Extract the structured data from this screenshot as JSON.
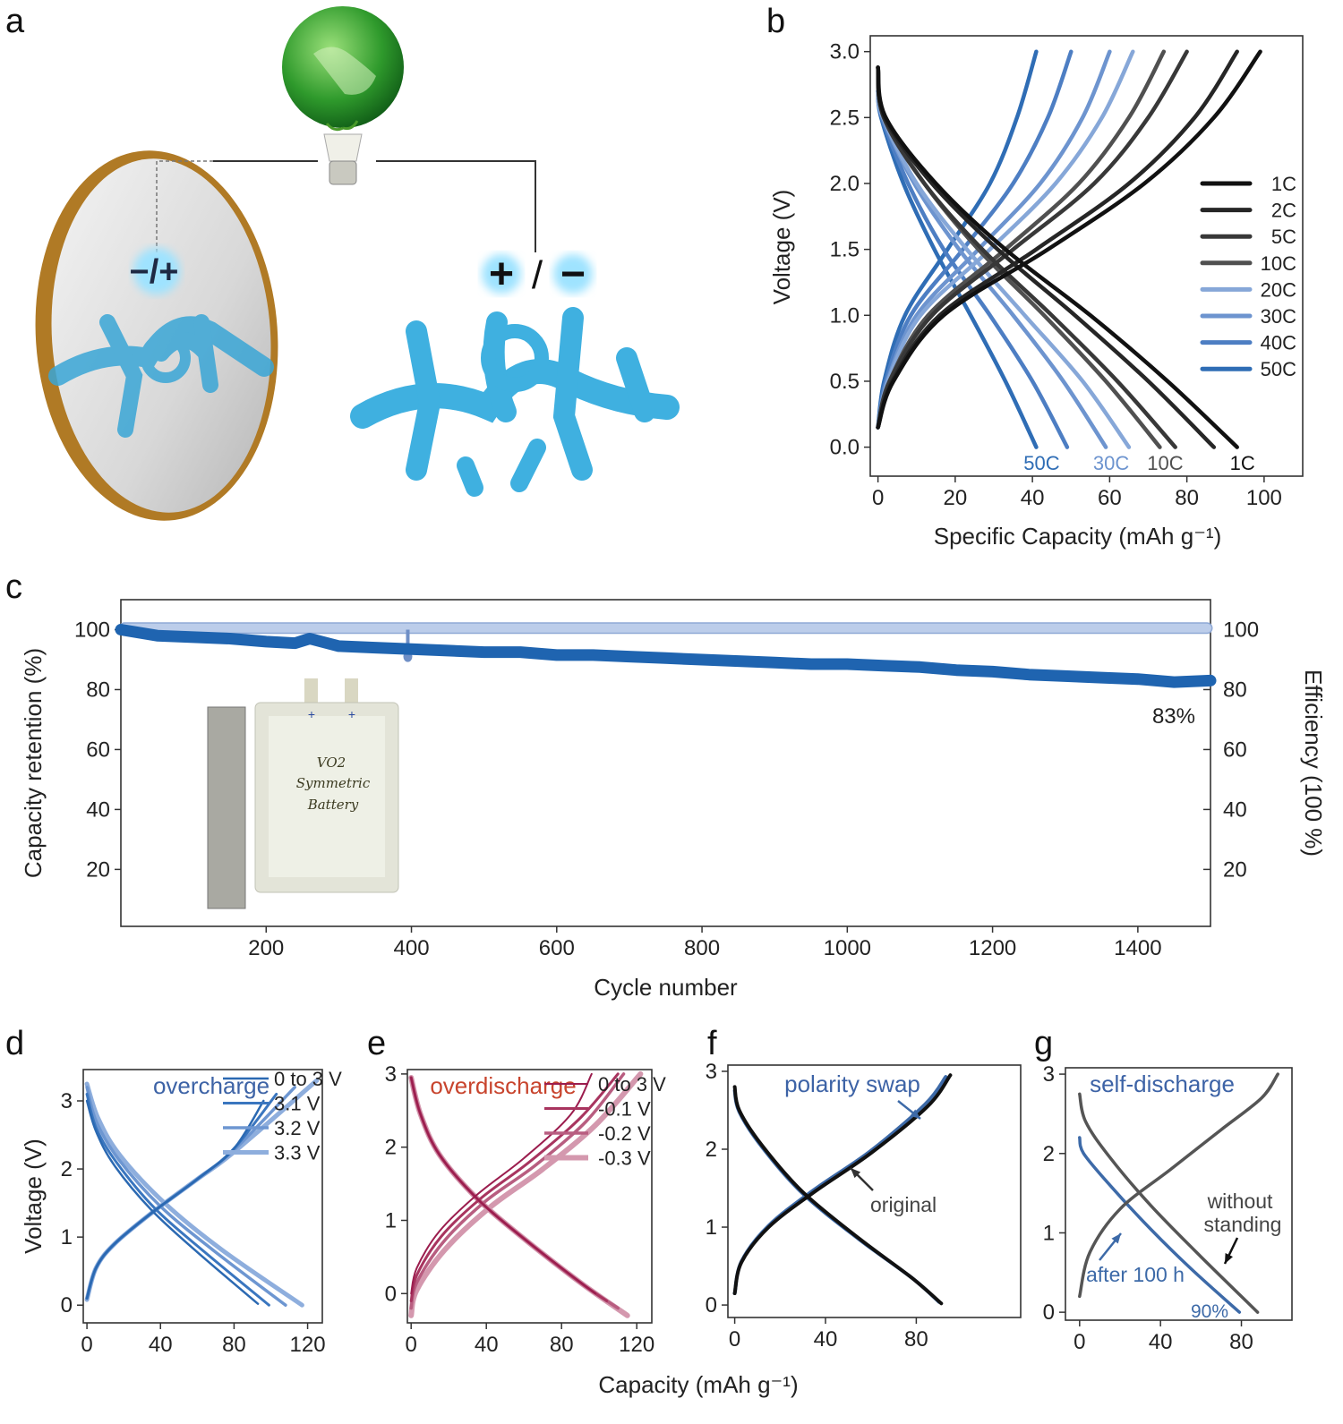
{
  "panel_letters": {
    "a": "a",
    "b": "b",
    "c": "c",
    "d": "d",
    "e": "e",
    "f": "f",
    "g": "g"
  },
  "illustration": {
    "mirror_sign": "−/+",
    "real_sign_plus": "+",
    "real_sign_slash": "/",
    "real_sign_minus": "−"
  },
  "inset_photo": {
    "line1": "VO2",
    "line2": "Symmetric",
    "line3": "Battery",
    "tab1": "+",
    "tab2": "+"
  },
  "shared_xlabel": "Capacity (mAh g⁻¹)",
  "chart_data": [
    {
      "id": "b",
      "type": "line",
      "xlabel": "Specific Capacity (mAh g⁻¹)",
      "ylabel": "Voltage (V)",
      "xlim": [
        -2,
        110
      ],
      "ylim": [
        -0.22,
        3.12
      ],
      "xticks": [
        "0",
        "20",
        "40",
        "60",
        "80",
        "100"
      ],
      "yticks": [
        "0.0",
        "0.5",
        "1.0",
        "1.5",
        "2.0",
        "2.5",
        "3.0"
      ],
      "legend": "right",
      "charge_voltage": [
        0.15,
        0.5,
        1.0,
        1.5,
        2.0,
        2.5,
        3.0
      ],
      "discharge_voltage": [
        2.85,
        2.5,
        2.0,
        1.5,
        1.0,
        0.5,
        0.0
      ],
      "series": [
        {
          "name": "1C",
          "color": "#111111",
          "charge_capacity": [
            0,
            4,
            17,
            44,
            69,
            87,
            99
          ],
          "discharge_capacity": [
            0,
            2,
            15,
            33,
            55,
            75,
            93
          ]
        },
        {
          "name": "2C",
          "color": "#262626",
          "charge_capacity": [
            0,
            3.7,
            16,
            41,
            65,
            82,
            93
          ],
          "discharge_capacity": [
            0,
            1.7,
            14,
            31,
            51,
            70,
            87
          ]
        },
        {
          "name": "5C",
          "color": "#383838",
          "charge_capacity": [
            0,
            3,
            14,
            35,
            56,
            70,
            80
          ],
          "discharge_capacity": [
            0,
            1.5,
            12,
            27,
            45,
            62,
            77
          ]
        },
        {
          "name": "10C",
          "color": "#505050",
          "charge_capacity": [
            0,
            3,
            13,
            33,
            52,
            65,
            74
          ],
          "discharge_capacity": [
            0,
            1.5,
            12,
            26,
            43,
            59,
            73
          ]
        },
        {
          "name": "20C",
          "color": "#86a7d8",
          "charge_capacity": [
            0,
            2.6,
            11,
            29,
            46,
            58,
            66
          ],
          "discharge_capacity": [
            0,
            1.3,
            10,
            23,
            38,
            53,
            65
          ]
        },
        {
          "name": "30C",
          "color": "#6d94cf",
          "charge_capacity": [
            0,
            2.4,
            10,
            26,
            42,
            53,
            60
          ],
          "discharge_capacity": [
            0,
            1.2,
            9.4,
            21,
            35,
            48,
            59
          ]
        },
        {
          "name": "40C",
          "color": "#4d7ec3",
          "charge_capacity": [
            0,
            2,
            8.5,
            22,
            35,
            44,
            50
          ],
          "discharge_capacity": [
            0,
            1,
            7.8,
            17,
            29,
            40,
            49
          ]
        },
        {
          "name": "50C",
          "color": "#2f6db5",
          "charge_capacity": [
            0,
            1.6,
            7,
            18,
            29,
            36,
            41
          ],
          "discharge_capacity": [
            0,
            0.8,
            6.6,
            14.6,
            24,
            33,
            41
          ]
        }
      ],
      "curve_labels": [
        {
          "text": "50C",
          "capacity": 41,
          "color": "#2f6db5"
        },
        {
          "text": "30C",
          "capacity": 59,
          "color": "#6d94cf"
        },
        {
          "text": "10C",
          "capacity": 73,
          "color": "#505050"
        },
        {
          "text": "1C",
          "capacity": 93,
          "color": "#111111"
        }
      ]
    },
    {
      "id": "c",
      "type": "line",
      "xlabel": "Cycle number",
      "ylabel": "Capacity retention (%)",
      "ylabel_right": "Efficiency (100 %)",
      "xlim": [
        0,
        1500
      ],
      "ylim": [
        1,
        110
      ],
      "xticks": [
        "200",
        "400",
        "600",
        "800",
        "1000",
        "1200",
        "1400"
      ],
      "yticks": [
        "20",
        "40",
        "60",
        "80",
        "100"
      ],
      "yticks_right": [
        "20",
        "40",
        "60",
        "80",
        "100"
      ],
      "retention": {
        "color": "#1f64b0",
        "x": [
          0,
          50,
          100,
          150,
          200,
          240,
          260,
          300,
          350,
          400,
          450,
          500,
          550,
          600,
          650,
          700,
          750,
          800,
          850,
          900,
          950,
          1000,
          1050,
          1100,
          1150,
          1200,
          1250,
          1300,
          1350,
          1400,
          1450,
          1500
        ],
        "y": [
          100,
          98,
          97.5,
          97,
          96,
          95.5,
          97,
          94.5,
          94,
          93.5,
          93,
          92.5,
          92.5,
          91.5,
          91.5,
          91,
          90.5,
          90,
          89.5,
          89,
          88.5,
          88.5,
          88,
          87.5,
          86.5,
          86,
          85,
          84.5,
          84,
          83.5,
          82.5,
          83
        ]
      },
      "efficiency": {
        "color": "#bccdea",
        "x": [
          0,
          1500
        ],
        "y": [
          100.5,
          100.5
        ]
      },
      "efficiency_outlier": {
        "x": 395,
        "y": 91
      },
      "annotation": "83%"
    },
    {
      "id": "d",
      "type": "line",
      "title": "overcharge",
      "title_color": "#3d63a6",
      "ylabel": "Voltage (V)",
      "xlim": [
        -2,
        128
      ],
      "ylim": [
        -0.26,
        3.46
      ],
      "xticks": [
        "0",
        "40",
        "80",
        "120"
      ],
      "yticks": [
        "0",
        "1",
        "2",
        "3"
      ],
      "series": [
        {
          "name": "0 to 3 V",
          "color": "#2b69b2",
          "charge": {
            "x": [
              0,
              5,
              15,
              35,
              60,
              80,
              96
            ],
            "y": [
              0.1,
              0.55,
              0.9,
              1.35,
              1.85,
              2.3,
              3.0
            ]
          },
          "discharge": {
            "x": [
              0,
              5,
              15,
              35,
              60,
              93
            ],
            "y": [
              3.0,
              2.55,
              2.05,
              1.4,
              0.78,
              0.02
            ]
          }
        },
        {
          "name": "3.1 V",
          "color": "#3a76bf",
          "charge": {
            "x": [
              0,
              5,
              15,
              35,
              60,
              80,
              103
            ],
            "y": [
              0.1,
              0.55,
              0.9,
              1.35,
              1.85,
              2.3,
              3.1
            ]
          },
          "discharge": {
            "x": [
              0,
              5,
              16,
              37,
              64,
              99
            ],
            "y": [
              3.1,
              2.6,
              2.1,
              1.42,
              0.78,
              0.0
            ]
          }
        },
        {
          "name": "3.2 V",
          "color": "#6d96d1",
          "charge": {
            "x": [
              0,
              5,
              15,
              35,
              60,
              80,
              113
            ],
            "y": [
              0.1,
              0.55,
              0.9,
              1.35,
              1.85,
              2.28,
              3.2
            ]
          },
          "discharge": {
            "x": [
              0,
              5,
              17,
              40,
              69,
              108
            ],
            "y": [
              3.2,
              2.7,
              2.15,
              1.45,
              0.8,
              0.0
            ]
          }
        },
        {
          "name": "3.3 V",
          "color": "#8eaedd",
          "charge": {
            "x": [
              0,
              5,
              15,
              35,
              60,
              80,
              125
            ],
            "y": [
              0.08,
              0.55,
              0.9,
              1.35,
              1.85,
              2.25,
              3.3
            ]
          },
          "discharge": {
            "x": [
              0,
              6,
              18,
              43,
              74,
              117
            ],
            "y": [
              3.25,
              2.75,
              2.2,
              1.48,
              0.8,
              0.0
            ]
          }
        }
      ]
    },
    {
      "id": "e",
      "type": "line",
      "title": "overdischarge",
      "title_color": "#c8442d",
      "xlim": [
        -2,
        128
      ],
      "ylim": [
        -0.4,
        3.06
      ],
      "xticks": [
        "0",
        "40",
        "80",
        "120"
      ],
      "yticks": [
        "0",
        "1",
        "2",
        "3"
      ],
      "series": [
        {
          "name": "0 to 3 V",
          "color": "#9b1d4e",
          "charge": {
            "x": [
              0,
              3,
              15,
              35,
              60,
              85,
              96
            ],
            "y": [
              0,
              0.35,
              0.85,
              1.35,
              1.85,
              2.45,
              3.0
            ]
          },
          "discharge": {
            "x": [
              0,
              5,
              15,
              35,
              60,
              98
            ],
            "y": [
              2.95,
              2.45,
              1.9,
              1.3,
              0.75,
              0.0
            ]
          }
        },
        {
          "name": "-0.1 V",
          "color": "#a8345f",
          "charge": {
            "x": [
              0,
              3,
              16,
              37,
              63,
              90,
              110
            ],
            "y": [
              -0.1,
              0.25,
              0.78,
              1.3,
              1.8,
              2.4,
              3.0
            ]
          },
          "discharge": {
            "x": [
              0,
              5,
              15,
              35,
              60,
              90,
              104
            ],
            "y": [
              2.95,
              2.45,
              1.9,
              1.3,
              0.75,
              0.15,
              -0.1
            ]
          }
        },
        {
          "name": "-0.2 V",
          "color": "#b85d80",
          "charge": {
            "x": [
              0,
              3,
              17,
              39,
              66,
              93,
              113
            ],
            "y": [
              -0.2,
              0.15,
              0.7,
              1.25,
              1.75,
              2.35,
              3.0
            ]
          },
          "discharge": {
            "x": [
              0,
              5,
              15,
              35,
              60,
              90,
              110
            ],
            "y": [
              2.95,
              2.45,
              1.9,
              1.3,
              0.75,
              0.15,
              -0.2
            ]
          }
        },
        {
          "name": "-0.3 V",
          "color": "#d498ae",
          "charge": {
            "x": [
              0,
              3,
              18,
              42,
              70,
              98,
              122
            ],
            "y": [
              -0.3,
              0.05,
              0.6,
              1.18,
              1.7,
              2.3,
              3.0
            ]
          },
          "discharge": {
            "x": [
              0,
              5,
              15,
              35,
              60,
              90,
              115
            ],
            "y": [
              2.95,
              2.45,
              1.9,
              1.3,
              0.75,
              0.15,
              -0.3
            ]
          }
        }
      ]
    },
    {
      "id": "f",
      "type": "line",
      "title": "polarity swap",
      "title_color": "#3d63a6",
      "xlim": [
        -3,
        126
      ],
      "ylim": [
        -0.16,
        3.08
      ],
      "xticks": [
        "0",
        "40",
        "80"
      ],
      "yticks": [
        "0",
        "1",
        "2",
        "3"
      ],
      "series": [
        {
          "name": "original",
          "color": "#111111",
          "charge": {
            "x": [
              0,
              3,
              15,
              35,
              60,
              85,
              95
            ],
            "y": [
              0.15,
              0.55,
              1.0,
              1.45,
              1.95,
              2.55,
              2.95
            ]
          },
          "discharge": {
            "x": [
              0,
              2,
              12,
              30,
              55,
              78,
              91
            ],
            "y": [
              2.8,
              2.5,
              2.05,
              1.45,
              0.85,
              0.35,
              0.02
            ]
          }
        },
        {
          "name": "polarity swap",
          "color": "#3d6aa8",
          "charge": {
            "x": [
              0,
              3,
              15,
              35,
              60,
              84,
              93
            ],
            "y": [
              0.15,
              0.56,
              1.02,
              1.48,
              1.98,
              2.58,
              2.93
            ]
          },
          "discharge": {
            "x": [
              0,
              2,
              12,
              30,
              55,
              78,
              90
            ],
            "y": [
              2.75,
              2.48,
              2.03,
              1.43,
              0.84,
              0.35,
              0.04
            ]
          }
        }
      ],
      "annotations": [
        "polarity swap",
        "original"
      ]
    },
    {
      "id": "g",
      "type": "line",
      "title": "self-discharge",
      "title_color": "#3d63a6",
      "xlim": [
        -7,
        105
      ],
      "ylim": [
        -0.1,
        3.08
      ],
      "xticks": [
        "0",
        "40",
        "80"
      ],
      "yticks": [
        "0",
        "1",
        "2",
        "3"
      ],
      "series": [
        {
          "name": "without standing",
          "color": "#555555",
          "charge": {
            "x": [
              0,
              5,
              20,
              45,
              70,
              90,
              98
            ],
            "y": [
              0.2,
              0.75,
              1.3,
              1.8,
              2.3,
              2.7,
              3.0
            ]
          },
          "discharge": {
            "x": [
              0,
              3,
              15,
              35,
              60,
              88
            ],
            "y": [
              2.75,
              2.4,
              1.95,
              1.35,
              0.7,
              0.0
            ]
          }
        },
        {
          "name": "after 100 h",
          "color": "#3d6aa8",
          "discharge": {
            "x": [
              0,
              2,
              15,
              35,
              55,
              79
            ],
            "y": [
              2.2,
              2.0,
              1.6,
              1.05,
              0.55,
              0.0
            ]
          }
        }
      ],
      "annotations": [
        "without",
        "standing",
        "after 100 h",
        "90%"
      ]
    }
  ]
}
